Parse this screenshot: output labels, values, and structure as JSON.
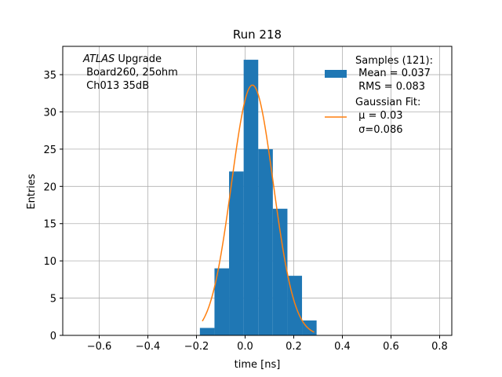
{
  "chart_data": {
    "type": "bar",
    "title": "Run 218",
    "xlabel": "time [ns]",
    "ylabel": "Entries",
    "xlim": [
      -0.75,
      0.85
    ],
    "ylim": [
      0,
      38.8
    ],
    "grid": true,
    "x_ticks": [
      -0.6,
      -0.4,
      -0.2,
      0.0,
      0.2,
      0.4,
      0.6,
      0.8
    ],
    "x_tick_labels": [
      "−0.6",
      "−0.4",
      "−0.2",
      "0.0",
      "0.2",
      "0.4",
      "0.6",
      "0.8"
    ],
    "y_ticks": [
      0,
      5,
      10,
      15,
      20,
      25,
      30,
      35
    ],
    "y_tick_labels": [
      "0",
      "5",
      "10",
      "15",
      "20",
      "25",
      "30",
      "35"
    ],
    "histogram": {
      "name": "Samples (121):",
      "color": "#1f77b4",
      "bin_edges": [
        -0.186,
        -0.126,
        -0.066,
        -0.006,
        0.054,
        0.114,
        0.174,
        0.234,
        0.294
      ],
      "counts": [
        1,
        9,
        22,
        37,
        25,
        17,
        8,
        2
      ]
    },
    "fit": {
      "name": "Gaussian Fit:",
      "color": "#ff7f0e",
      "amplitude": 33.6,
      "mu": 0.03,
      "sigma": 0.086,
      "x_range": [
        -0.176,
        0.284
      ]
    },
    "legend": {
      "placement": "top-right",
      "entries": [
        {
          "lines": [
            "Samples (121):",
            " Mean = 0.037",
            " RMS = 0.083"
          ]
        },
        {
          "lines": [
            "Gaussian Fit:",
            " μ = 0.03",
            " σ=0.086"
          ]
        }
      ]
    },
    "annotation": {
      "italic": "ATLAS",
      "rest": " Upgrade",
      "lines": [
        " Board260, 25ohm",
        " Ch013 35dB"
      ]
    }
  }
}
